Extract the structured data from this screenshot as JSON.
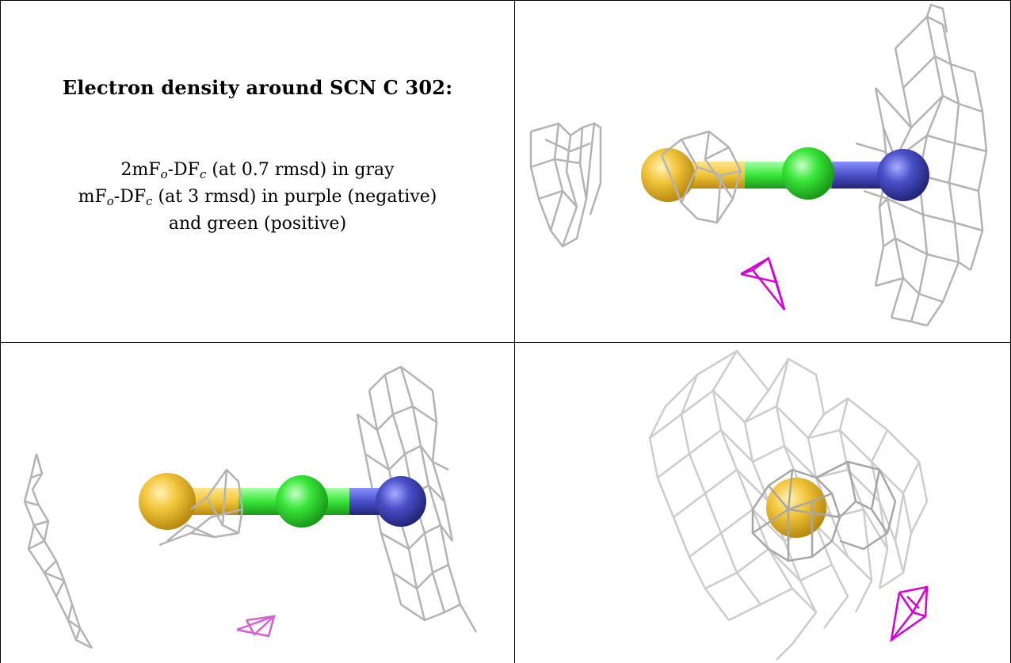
{
  "caption": {
    "title": "Electron density around SCN C 302:",
    "line1": {
      "pre": "2mF",
      "sub1": "o",
      "mid": "-DF",
      "sub2": "c",
      "post": " (at 0.7 rmsd) in gray"
    },
    "line2": {
      "pre": "mF",
      "sub1": "o",
      "mid": "-DF",
      "sub2": "c",
      "post": " (at 3 rmsd) in purple (negative)"
    },
    "line3": "and green (positive)"
  },
  "colors": {
    "sulfur": "#f2c53a",
    "carbon": "#39e639",
    "nitrogen": "#4a50c8",
    "mesh_gray": "#b3b3b3",
    "mesh_negative": "#d400d4",
    "grid_line": "#000000"
  },
  "panels": [
    {
      "id": "view-top-right",
      "atoms": [
        "sulfur",
        "carbon",
        "nitrogen"
      ]
    },
    {
      "id": "view-bottom-left",
      "atoms": [
        "sulfur",
        "carbon",
        "nitrogen"
      ]
    },
    {
      "id": "view-bottom-right",
      "atoms": [
        "sulfur"
      ]
    }
  ]
}
